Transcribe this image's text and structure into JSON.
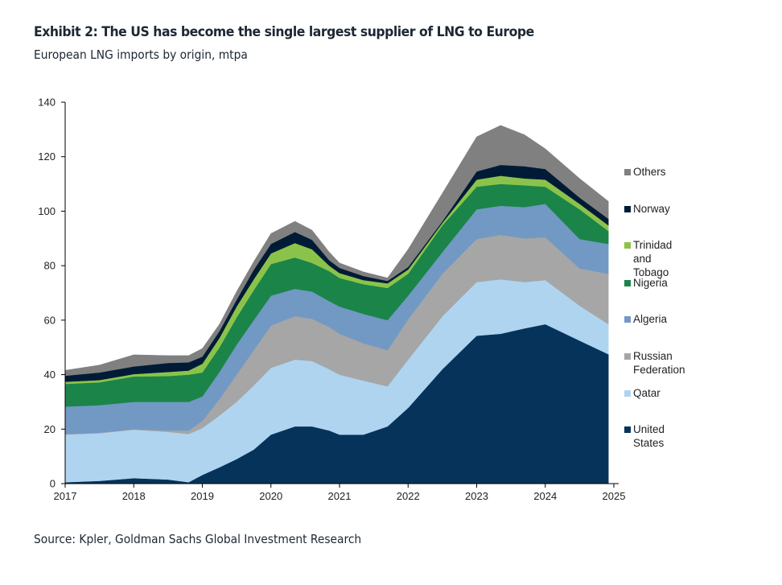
{
  "header": {
    "title": "Exhibit 2: The US has become the single largest supplier of LNG to Europe",
    "subtitle": "European LNG imports by origin, mtpa"
  },
  "footer": {
    "source": "Source: Kpler, Goldman Sachs Global Investment Research"
  },
  "chart_data": {
    "type": "area",
    "stacked": true,
    "title": "European LNG imports by origin, mtpa",
    "xlabel": "",
    "ylabel": "mtpa",
    "xlim": [
      2017,
      2025
    ],
    "ylim": [
      0,
      140
    ],
    "x_ticks": [
      "2017",
      "2018",
      "2019",
      "2020",
      "2021",
      "2022",
      "2023",
      "2024",
      "2025"
    ],
    "y_ticks": [
      "0",
      "20",
      "40",
      "60",
      "80",
      "100",
      "120",
      "140"
    ],
    "grid": false,
    "legend_position": "right",
    "x": [
      2017.0,
      2017.5,
      2018.0,
      2018.5,
      2018.8,
      2019.0,
      2019.25,
      2019.5,
      2019.75,
      2020.0,
      2020.35,
      2020.6,
      2020.85,
      2021.0,
      2021.35,
      2021.7,
      2022.0,
      2022.5,
      2023.0,
      2023.35,
      2023.7,
      2024.0,
      2024.5,
      2024.92
    ],
    "series": [
      {
        "name": "United States",
        "color": "#06335a",
        "values": [
          0.5,
          1.0,
          2.0,
          1.5,
          0.5,
          3.2,
          6.0,
          9.0,
          12.5,
          18.0,
          21.0,
          21.0,
          19.5,
          18.0,
          18.0,
          21.0,
          27.8,
          42.0,
          54.3,
          55.0,
          57.0,
          58.5,
          52.5,
          47.5
        ]
      },
      {
        "name": "Qatar",
        "color": "#aed4f0",
        "values": [
          17.5,
          17.5,
          17.8,
          17.5,
          17.7,
          17.2,
          19.0,
          21.0,
          23.5,
          24.5,
          24.5,
          24.0,
          22.5,
          22.0,
          19.8,
          14.7,
          17.7,
          19.4,
          19.7,
          20.0,
          17.0,
          16.2,
          12.8,
          11.0
        ]
      },
      {
        "name": "Russian Federation",
        "color": "#a6a6a6",
        "values": [
          0.2,
          0.2,
          0.2,
          0.5,
          1.3,
          2.6,
          6.0,
          10.0,
          13.0,
          15.5,
          16.0,
          15.5,
          15.5,
          15.0,
          13.7,
          13.3,
          14.8,
          15.6,
          15.8,
          16.3,
          16.0,
          15.7,
          13.7,
          18.5
        ]
      },
      {
        "name": "Algeria",
        "color": "#7199c4",
        "values": [
          10.1,
          10.1,
          10.0,
          10.5,
          10.5,
          9.0,
          10.0,
          11.0,
          11.0,
          11.0,
          10.0,
          10.0,
          9.5,
          10.0,
          10.8,
          11.0,
          8.7,
          8.0,
          10.9,
          10.7,
          11.5,
          12.3,
          10.8,
          11.0
        ]
      },
      {
        "name": "Nigeria",
        "color": "#1b8449",
        "values": [
          8.3,
          8.4,
          9.3,
          9.5,
          10.0,
          8.8,
          9.0,
          10.0,
          11.0,
          11.6,
          11.5,
          10.5,
          11.0,
          10.5,
          10.9,
          11.8,
          8.0,
          9.8,
          8.3,
          8.0,
          8.0,
          6.3,
          10.9,
          4.7
        ]
      },
      {
        "name": "Trinidad and Tobago",
        "color": "#8bc34a",
        "values": [
          0.8,
          0.8,
          0.9,
          1.5,
          1.5,
          3.2,
          3.5,
          4.0,
          4.0,
          3.9,
          5.3,
          5.0,
          2.0,
          1.8,
          1.5,
          1.7,
          1.6,
          0.9,
          2.6,
          3.0,
          2.5,
          2.6,
          2.0,
          2.1
        ]
      },
      {
        "name": "Norway",
        "color": "#001b36",
        "values": [
          2.2,
          2.8,
          2.8,
          3.3,
          3.0,
          2.6,
          2.5,
          2.5,
          3.5,
          3.5,
          4.1,
          3.5,
          2.0,
          1.9,
          1.5,
          0.9,
          0.9,
          0.6,
          3.0,
          4.0,
          4.5,
          3.9,
          2.3,
          2.4
        ]
      },
      {
        "name": "Others",
        "color": "#808080",
        "values": [
          2.0,
          2.7,
          4.3,
          2.7,
          2.5,
          3.0,
          2.5,
          3.0,
          3.0,
          3.8,
          3.9,
          3.5,
          3.0,
          1.8,
          1.5,
          1.1,
          6.5,
          10.3,
          12.7,
          14.5,
          11.5,
          7.4,
          7.0,
          6.4
        ]
      }
    ],
    "legend": [
      "Others",
      "Norway",
      "Trinidad and\nTobago",
      "Nigeria",
      "Algeria",
      "Russian Federation",
      "Qatar",
      "United States"
    ]
  }
}
